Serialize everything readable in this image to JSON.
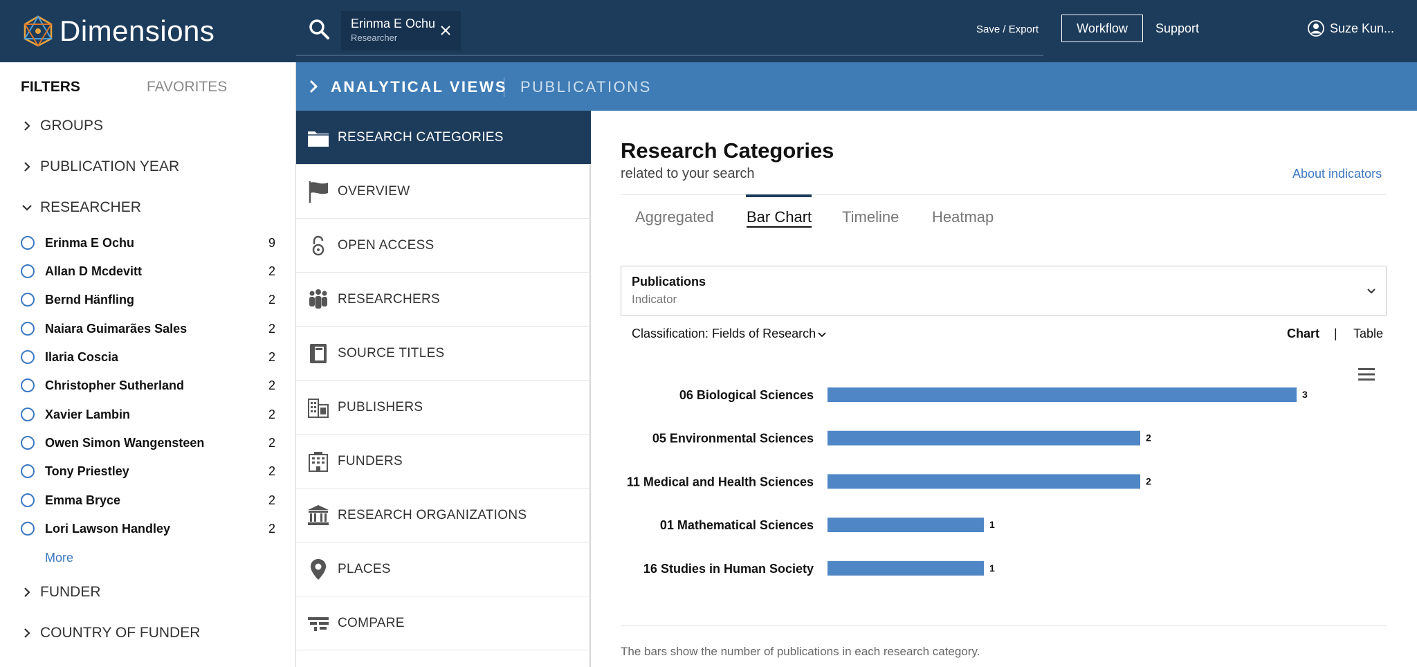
{
  "header": {
    "brand": "Dimensions",
    "search_chip": {
      "name": "Erinma E Ochu",
      "type": "Researcher"
    },
    "save_export": "Save / Export",
    "workflow": "Workflow",
    "support": "Support",
    "user_name": "Suze Kun..."
  },
  "filters": {
    "tabs": [
      "FILTERS",
      "FAVORITES"
    ],
    "groups_top": [
      "GROUPS",
      "PUBLICATION YEAR",
      "RESEARCHER"
    ],
    "researchers": [
      {
        "name": "Erinma E Ochu",
        "count": "9"
      },
      {
        "name": "Allan D Mcdevitt",
        "count": "2"
      },
      {
        "name": "Bernd Hänfling",
        "count": "2"
      },
      {
        "name": "Naiara Guimarães Sales",
        "count": "2"
      },
      {
        "name": "Ilaria Coscia",
        "count": "2"
      },
      {
        "name": "Christopher Sutherland",
        "count": "2"
      },
      {
        "name": "Xavier Lambin",
        "count": "2"
      },
      {
        "name": "Owen Simon Wangensteen",
        "count": "2"
      },
      {
        "name": "Tony Priestley",
        "count": "2"
      },
      {
        "name": "Emma Bryce",
        "count": "2"
      },
      {
        "name": "Lori Lawson Handley",
        "count": "2"
      }
    ],
    "more": "More",
    "groups_bottom": [
      "FUNDER",
      "COUNTRY OF FUNDER"
    ]
  },
  "analytical_views": {
    "title": "ANALYTICAL VIEWS",
    "subtitle": "PUBLICATIONS"
  },
  "nav": {
    "items": [
      {
        "label": "RESEARCH CATEGORIES",
        "icon": "folder-icon"
      },
      {
        "label": "OVERVIEW",
        "icon": "flag-icon"
      },
      {
        "label": "OPEN ACCESS",
        "icon": "open-lock-icon"
      },
      {
        "label": "RESEARCHERS",
        "icon": "people-icon"
      },
      {
        "label": "SOURCE TITLES",
        "icon": "book-icon"
      },
      {
        "label": "PUBLISHERS",
        "icon": "publisher-building-icon"
      },
      {
        "label": "FUNDERS",
        "icon": "building-icon"
      },
      {
        "label": "RESEARCH ORGANIZATIONS",
        "icon": "institution-icon"
      },
      {
        "label": "PLACES",
        "icon": "map-pin-icon"
      },
      {
        "label": "COMPARE",
        "icon": "compare-icon"
      }
    ]
  },
  "main": {
    "title": "Research Categories",
    "subtitle": "related to your search",
    "about": "About indicators",
    "tabs": [
      "Aggregated",
      "Bar Chart",
      "Timeline",
      "Heatmap"
    ],
    "indicator": {
      "label": "Publications",
      "sub": "Indicator"
    },
    "classification_label": "Classification:",
    "classification_value": "Fields of Research",
    "view_chart": "Chart",
    "view_sep": "|",
    "view_table": "Table",
    "footnote": "The bars show the number of publications in each research category."
  },
  "chart_data": {
    "type": "bar",
    "orientation": "horizontal",
    "categories": [
      "06 Biological Sciences",
      "05 Environmental Sciences",
      "11 Medical and Health Sciences",
      "01 Mathematical Sciences",
      "16 Studies in Human Society"
    ],
    "values": [
      3,
      2,
      2,
      1,
      1
    ],
    "bar_color": "#4f86c6",
    "grid": false
  },
  "colors": {
    "header": "#1d3c5c",
    "accent": "#3f7cb5",
    "link": "#3b78c1"
  }
}
